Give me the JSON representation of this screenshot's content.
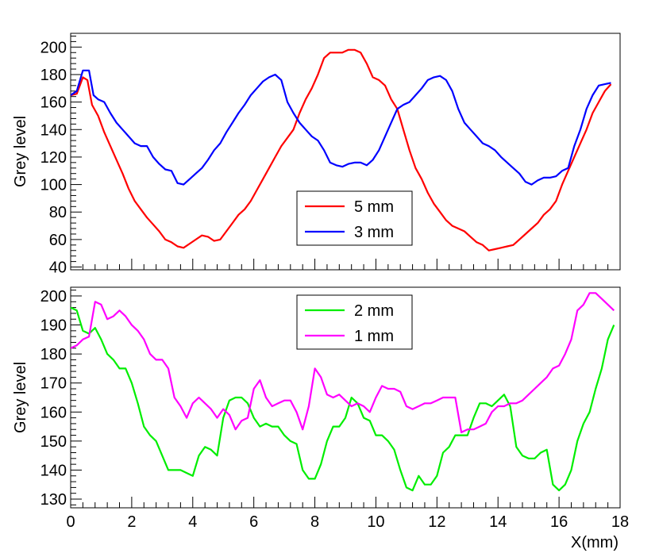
{
  "chart_data": [
    {
      "type": "line",
      "ylabel": "Grey level",
      "xlim": [
        0,
        18
      ],
      "ylim": [
        38,
        210
      ],
      "xticks": [
        0,
        2,
        4,
        6,
        8,
        10,
        12,
        14,
        16,
        18
      ],
      "yticks": [
        40,
        60,
        80,
        100,
        120,
        140,
        160,
        180,
        200
      ],
      "legend_position": "center",
      "series": [
        {
          "name": "5 mm",
          "color": "#ff0000",
          "x": [
            0,
            0.2,
            0.4,
            0.55,
            0.7,
            0.9,
            1.1,
            1.3,
            1.5,
            1.7,
            1.9,
            2.1,
            2.3,
            2.5,
            2.7,
            2.9,
            3.1,
            3.3,
            3.5,
            3.7,
            3.9,
            4.1,
            4.3,
            4.5,
            4.7,
            4.9,
            5.1,
            5.3,
            5.5,
            5.7,
            5.9,
            6.1,
            6.3,
            6.5,
            6.7,
            6.9,
            7.1,
            7.3,
            7.5,
            7.7,
            7.9,
            8.1,
            8.3,
            8.5,
            8.7,
            8.9,
            9.1,
            9.3,
            9.5,
            9.7,
            9.9,
            10.1,
            10.3,
            10.5,
            10.7,
            10.9,
            11.1,
            11.3,
            11.5,
            11.7,
            11.9,
            12.1,
            12.3,
            12.5,
            12.7,
            12.9,
            13.1,
            13.3,
            13.5,
            13.7,
            13.9,
            14.1,
            14.3,
            14.5,
            14.7,
            14.9,
            15.1,
            15.3,
            15.5,
            15.7,
            15.9,
            16.1,
            16.3,
            16.5,
            16.7,
            16.9,
            17.1,
            17.3,
            17.5,
            17.7
          ],
          "y": [
            165,
            166,
            178,
            176,
            158,
            150,
            138,
            128,
            118,
            108,
            97,
            88,
            82,
            76,
            71,
            66,
            60,
            58,
            55,
            54,
            57,
            60,
            63,
            62,
            59,
            60,
            66,
            72,
            78,
            82,
            88,
            96,
            104,
            112,
            120,
            128,
            134,
            140,
            152,
            162,
            170,
            180,
            192,
            196,
            196,
            196,
            198,
            198,
            196,
            188,
            178,
            176,
            172,
            162,
            155,
            140,
            125,
            112,
            104,
            94,
            86,
            80,
            74,
            70,
            68,
            66,
            62,
            58,
            56,
            52,
            53,
            54,
            55,
            56,
            60,
            64,
            68,
            72,
            78,
            82,
            88,
            100,
            110,
            120,
            130,
            140,
            152,
            160,
            168,
            173
          ]
        },
        {
          "name": "3 mm",
          "color": "#0000ff",
          "x": [
            0,
            0.2,
            0.4,
            0.6,
            0.75,
            0.9,
            1.1,
            1.3,
            1.5,
            1.7,
            1.9,
            2.1,
            2.3,
            2.5,
            2.7,
            2.9,
            3.1,
            3.3,
            3.5,
            3.7,
            3.9,
            4.1,
            4.3,
            4.5,
            4.7,
            4.9,
            5.1,
            5.3,
            5.5,
            5.7,
            5.9,
            6.1,
            6.3,
            6.5,
            6.7,
            6.9,
            7.1,
            7.3,
            7.5,
            7.7,
            7.9,
            8.1,
            8.3,
            8.5,
            8.7,
            8.9,
            9.1,
            9.3,
            9.5,
            9.7,
            9.9,
            10.1,
            10.3,
            10.5,
            10.7,
            10.9,
            11.1,
            11.3,
            11.5,
            11.7,
            11.9,
            12.1,
            12.3,
            12.5,
            12.7,
            12.9,
            13.1,
            13.3,
            13.5,
            13.7,
            13.9,
            14.1,
            14.3,
            14.5,
            14.7,
            14.9,
            15.1,
            15.3,
            15.5,
            15.7,
            15.9,
            16.1,
            16.3,
            16.5,
            16.7,
            16.9,
            17.1,
            17.3,
            17.5,
            17.7
          ],
          "y": [
            165,
            168,
            183,
            183,
            165,
            162,
            160,
            152,
            145,
            140,
            135,
            130,
            128,
            128,
            120,
            115,
            111,
            110,
            101,
            100,
            104,
            108,
            112,
            118,
            125,
            130,
            138,
            145,
            152,
            158,
            165,
            170,
            175,
            178,
            180,
            176,
            160,
            152,
            145,
            140,
            135,
            132,
            125,
            116,
            114,
            113,
            115,
            116,
            116,
            114,
            118,
            125,
            135,
            145,
            155,
            158,
            160,
            165,
            170,
            176,
            178,
            179,
            176,
            168,
            155,
            145,
            140,
            135,
            130,
            128,
            125,
            120,
            116,
            112,
            108,
            102,
            100,
            103,
            105,
            105,
            106,
            110,
            112,
            128,
            140,
            155,
            165,
            172,
            173,
            174
          ]
        }
      ]
    },
    {
      "type": "line",
      "ylabel": "Grey level",
      "xlabel": "X(mm)",
      "xlim": [
        0,
        18
      ],
      "ylim": [
        127,
        203
      ],
      "xticks": [
        0,
        2,
        4,
        6,
        8,
        10,
        12,
        14,
        16,
        18
      ],
      "xtick_labels": [
        "0",
        "2",
        "4",
        "6",
        "8",
        "10",
        "12",
        "14",
        "16",
        "18"
      ],
      "yticks": [
        130,
        140,
        150,
        160,
        170,
        180,
        190,
        200
      ],
      "legend_position": "top-center",
      "series": [
        {
          "name": "2 mm",
          "color": "#00ee00",
          "x": [
            0,
            0.2,
            0.4,
            0.6,
            0.8,
            1.0,
            1.2,
            1.4,
            1.6,
            1.8,
            2.0,
            2.2,
            2.4,
            2.6,
            2.8,
            3.0,
            3.2,
            3.4,
            3.6,
            3.8,
            4.0,
            4.2,
            4.4,
            4.6,
            4.8,
            5.0,
            5.2,
            5.4,
            5.6,
            5.8,
            6.0,
            6.2,
            6.4,
            6.6,
            6.8,
            7.0,
            7.2,
            7.4,
            7.6,
            7.8,
            8.0,
            8.2,
            8.4,
            8.6,
            8.8,
            9.0,
            9.2,
            9.4,
            9.6,
            9.8,
            10.0,
            10.2,
            10.4,
            10.6,
            10.8,
            11.0,
            11.2,
            11.4,
            11.6,
            11.8,
            12.0,
            12.2,
            12.4,
            12.6,
            12.8,
            13.0,
            13.2,
            13.4,
            13.6,
            13.8,
            14.0,
            14.2,
            14.4,
            14.6,
            14.8,
            15.0,
            15.2,
            15.4,
            15.6,
            15.8,
            16.0,
            16.2,
            16.4,
            16.6,
            16.8,
            17.0,
            17.2,
            17.4,
            17.6,
            17.8
          ],
          "y": [
            196,
            195,
            188,
            187,
            189,
            185,
            180,
            178,
            175,
            175,
            170,
            163,
            155,
            152,
            150,
            145,
            140,
            140,
            140,
            139,
            138,
            145,
            148,
            147,
            145,
            158,
            164,
            165,
            165,
            163,
            158,
            155,
            156,
            155,
            155,
            152,
            150,
            149,
            140,
            137,
            137,
            142,
            150,
            155,
            155,
            158,
            165,
            163,
            158,
            157,
            152,
            152,
            150,
            147,
            140,
            134,
            133,
            138,
            135,
            135,
            138,
            146,
            148,
            152,
            152,
            152,
            158,
            163,
            163,
            162,
            164,
            166,
            162,
            148,
            145,
            144,
            144,
            146,
            147,
            135,
            133,
            135,
            140,
            150,
            156,
            160,
            168,
            175,
            185,
            190
          ]
        },
        {
          "name": "1 mm",
          "color": "#ff00ff",
          "x": [
            0,
            0.2,
            0.4,
            0.6,
            0.8,
            1.0,
            1.2,
            1.4,
            1.6,
            1.8,
            2.0,
            2.2,
            2.4,
            2.6,
            2.8,
            3.0,
            3.2,
            3.4,
            3.6,
            3.8,
            4.0,
            4.2,
            4.4,
            4.6,
            4.8,
            5.0,
            5.2,
            5.4,
            5.6,
            5.8,
            6.0,
            6.2,
            6.4,
            6.6,
            6.8,
            7.0,
            7.2,
            7.4,
            7.6,
            7.8,
            8.0,
            8.2,
            8.4,
            8.6,
            8.8,
            9.0,
            9.2,
            9.4,
            9.6,
            9.8,
            10.0,
            10.2,
            10.4,
            10.6,
            10.8,
            11.0,
            11.2,
            11.4,
            11.6,
            11.8,
            12.0,
            12.2,
            12.4,
            12.6,
            12.8,
            13.0,
            13.2,
            13.4,
            13.6,
            13.8,
            14.0,
            14.2,
            14.4,
            14.6,
            14.8,
            15.0,
            15.2,
            15.4,
            15.6,
            15.8,
            16.0,
            16.2,
            16.4,
            16.6,
            16.8,
            17.0,
            17.2,
            17.4,
            17.6,
            17.8
          ],
          "y": [
            182,
            183,
            185,
            186,
            198,
            197,
            192,
            193,
            195,
            193,
            190,
            188,
            185,
            180,
            178,
            178,
            175,
            165,
            162,
            158,
            163,
            165,
            163,
            161,
            158,
            161,
            159,
            154,
            157,
            158,
            168,
            171,
            165,
            162,
            163,
            164,
            164,
            160,
            154,
            162,
            175,
            172,
            166,
            165,
            166,
            164,
            162,
            163,
            162,
            160,
            165,
            169,
            168,
            168,
            167,
            162,
            161,
            162,
            163,
            163,
            164,
            165,
            165,
            165,
            153,
            154,
            154,
            155,
            156,
            160,
            162,
            162,
            163,
            163,
            164,
            166,
            168,
            170,
            172,
            175,
            176,
            180,
            185,
            195,
            197,
            201,
            201,
            199,
            197,
            195
          ]
        }
      ]
    }
  ]
}
